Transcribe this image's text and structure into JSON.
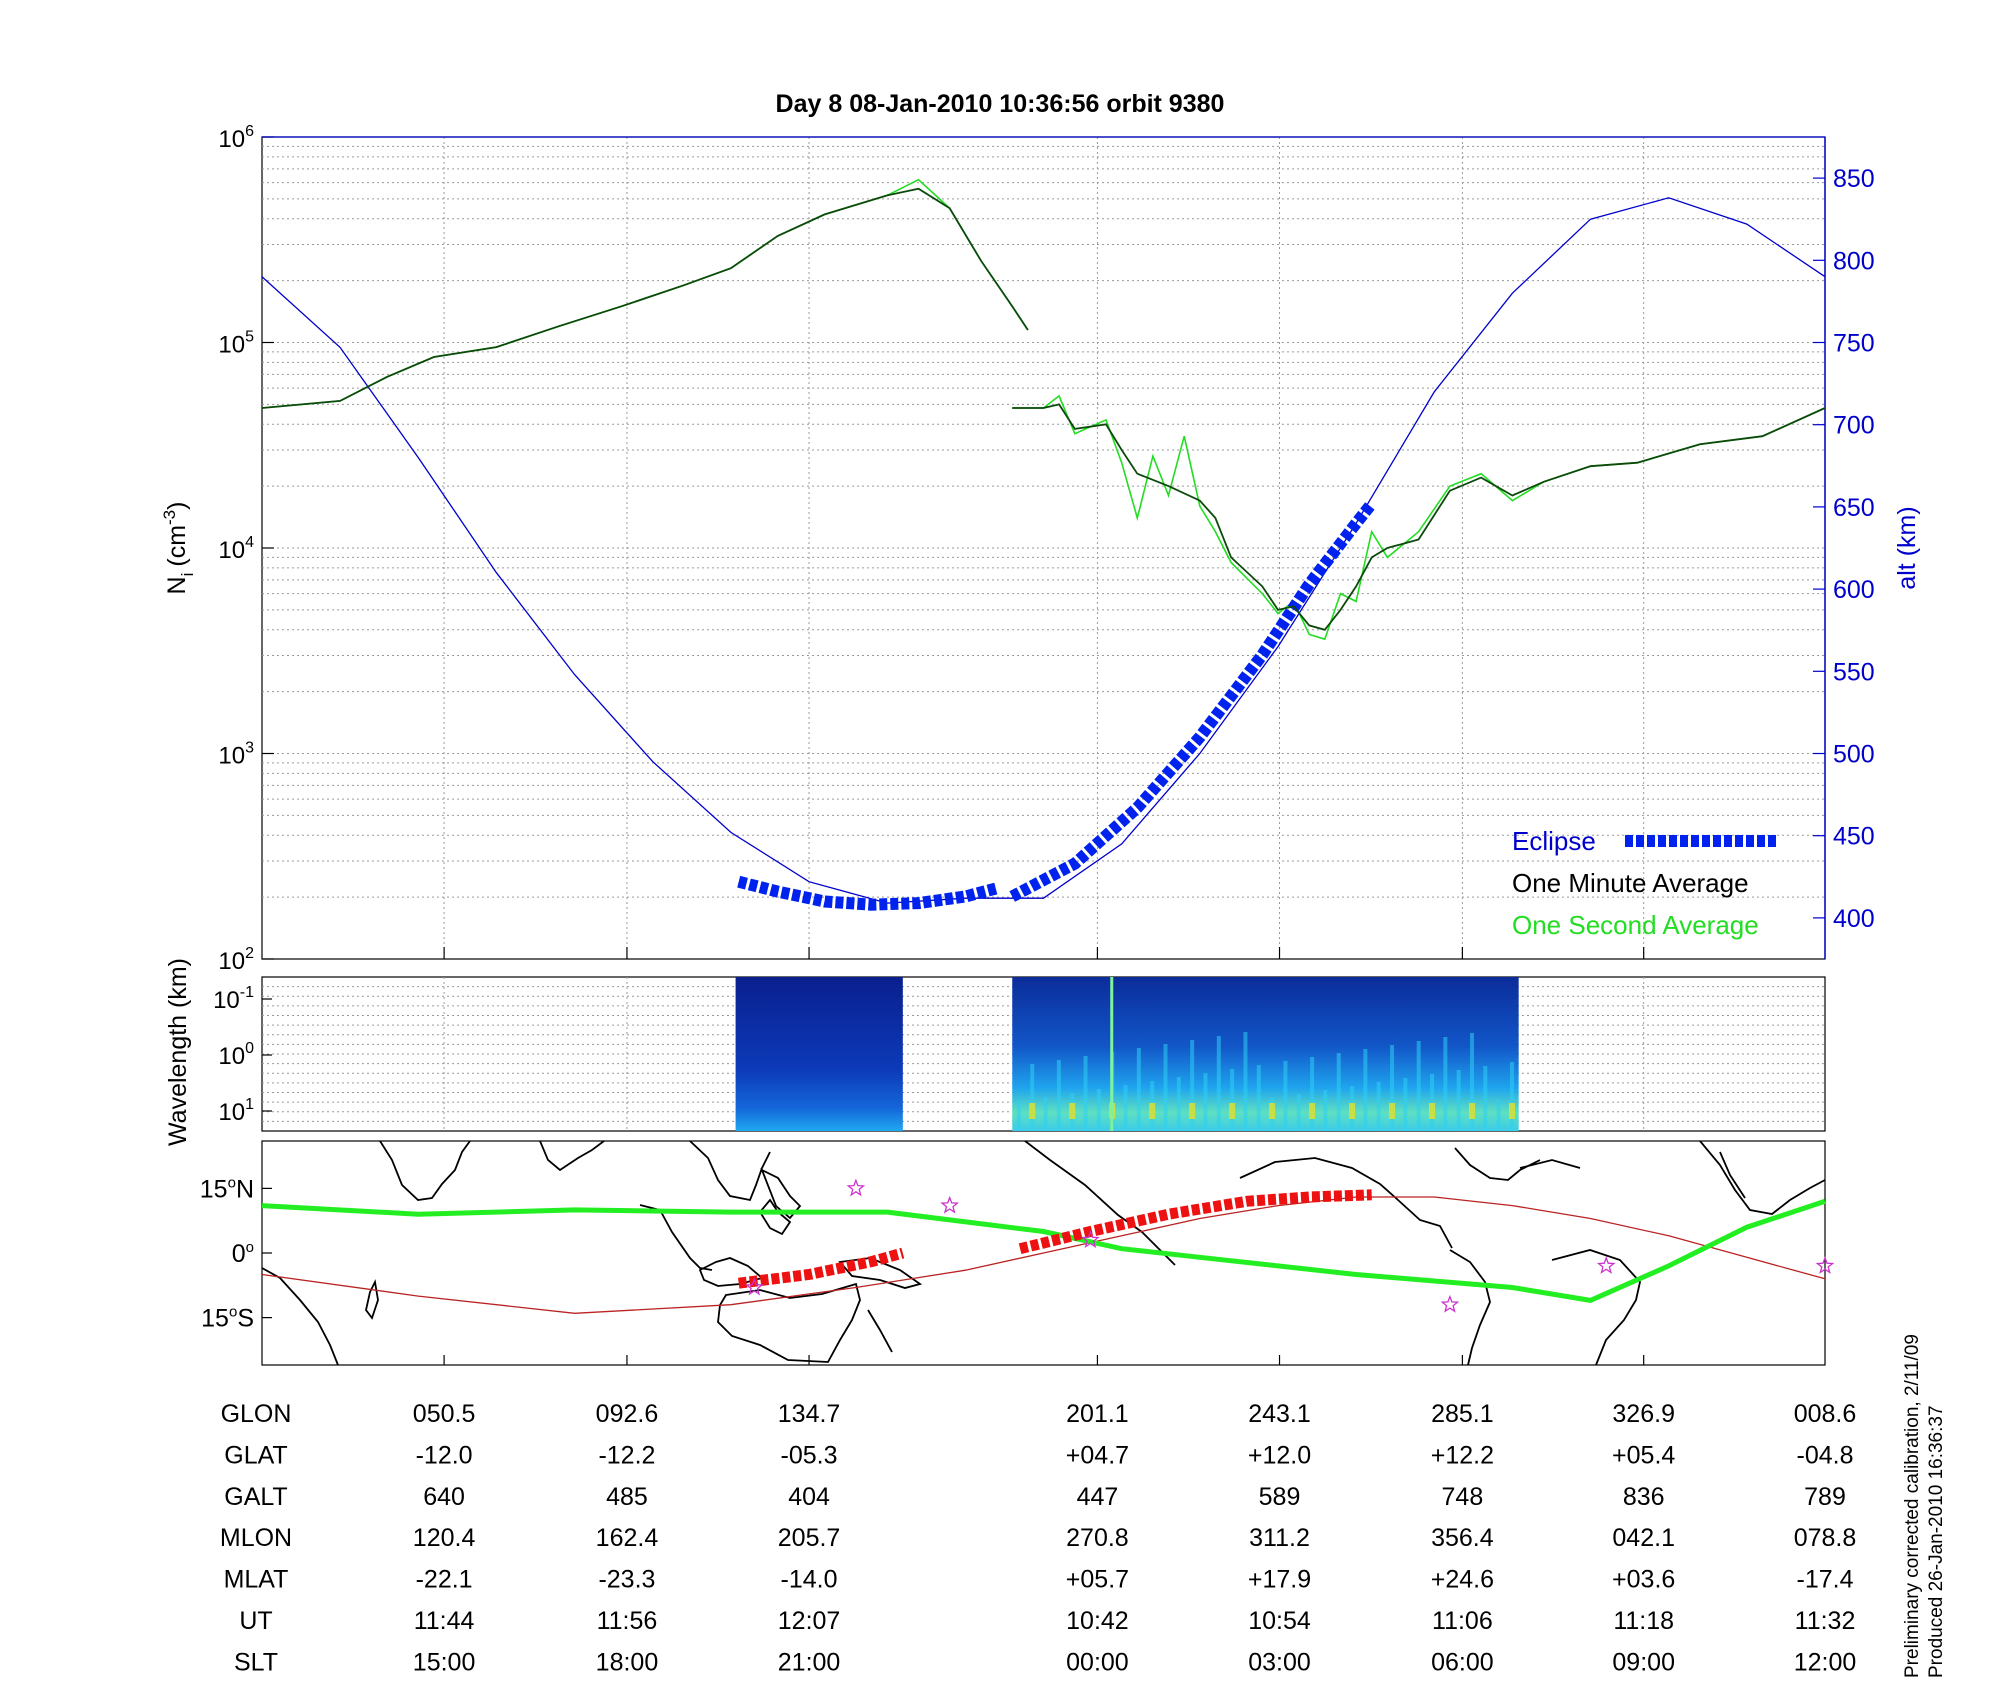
{
  "title": "Day 8  08-Jan-2010 10:36:56   orbit 9380",
  "footnote": {
    "line1": "Preliminary corrected calibration, 2/11/09",
    "line2": "Produced 26-Jan-2010 16:36:37"
  },
  "colors": {
    "altitude": "#0000cc",
    "eclipse": "#0022ee",
    "one_minute": "#0b4a0b",
    "one_second": "#22dd22",
    "track": "#22ee22",
    "eclipse_track": "#ee1111",
    "magnetic_equator": "#bb2222",
    "stars": "#cc33cc"
  },
  "chart_data": [
    {
      "type": "line",
      "panel": "density",
      "ylabel": "N",
      "ylabel_sub": "i",
      "ylabel_unit": "(cm",
      "ylabel_exp": "-3",
      "y_scale": "log",
      "ylim": [
        100,
        1000000
      ],
      "y_ticks": [
        {
          "base": "10",
          "exp": "2"
        },
        {
          "base": "10",
          "exp": "3"
        },
        {
          "base": "10",
          "exp": "4"
        },
        {
          "base": "10",
          "exp": "5"
        },
        {
          "base": "10",
          "exp": "6"
        }
      ],
      "y2label": "alt (km)",
      "y2lim": [
        375,
        875
      ],
      "y2_ticks": [
        "400",
        "450",
        "500",
        "550",
        "600",
        "650",
        "700",
        "750",
        "800",
        "850"
      ],
      "x_sample_fraction": [
        0,
        0.05,
        0.1,
        0.15,
        0.2,
        0.25,
        0.3,
        0.35,
        0.4,
        0.45,
        0.5,
        0.55,
        0.6,
        0.65,
        0.7,
        0.75,
        0.8,
        0.85,
        0.9,
        0.95,
        1.0
      ],
      "grid": true,
      "legend": "bottom-right",
      "legend_entries": [
        "Eclipse",
        "One Minute Average",
        "One Second Average"
      ],
      "series": [
        {
          "name": "One Minute Average",
          "role": "one_minute",
          "segments": [
            [
              [
                0.0,
                48000
              ],
              [
                0.05,
                52000
              ],
              [
                0.08,
                68000
              ],
              [
                0.11,
                85000
              ],
              [
                0.15,
                95000
              ],
              [
                0.19,
                120000
              ],
              [
                0.23,
                150000
              ],
              [
                0.27,
                190000
              ],
              [
                0.3,
                230000
              ],
              [
                0.33,
                330000
              ],
              [
                0.36,
                420000
              ],
              [
                0.4,
                520000
              ],
              [
                0.42,
                560000
              ],
              [
                0.44,
                450000
              ],
              [
                0.46,
                250000
              ],
              [
                0.48,
                150000
              ],
              [
                0.49,
                115000
              ]
            ],
            [
              [
                0.48,
                48000
              ],
              [
                0.5,
                48000
              ],
              [
                0.51,
                50000
              ],
              [
                0.52,
                38000
              ],
              [
                0.54,
                40000
              ],
              [
                0.55,
                30000
              ],
              [
                0.56,
                23000
              ],
              [
                0.58,
                20000
              ],
              [
                0.6,
                17000
              ],
              [
                0.61,
                14000
              ],
              [
                0.62,
                9000
              ],
              [
                0.64,
                6500
              ],
              [
                0.65,
                5000
              ],
              [
                0.66,
                5200
              ],
              [
                0.67,
                4200
              ],
              [
                0.68,
                4000
              ],
              [
                0.69,
                5000
              ],
              [
                0.7,
                6500
              ],
              [
                0.71,
                9000
              ],
              [
                0.72,
                10000
              ],
              [
                0.74,
                11000
              ],
              [
                0.76,
                19000
              ],
              [
                0.78,
                22000
              ],
              [
                0.8,
                18000
              ],
              [
                0.82,
                21000
              ],
              [
                0.85,
                25000
              ],
              [
                0.88,
                26000
              ],
              [
                0.92,
                32000
              ],
              [
                0.96,
                35000
              ],
              [
                1.0,
                48000
              ]
            ]
          ]
        },
        {
          "name": "One Second Average",
          "role": "one_second",
          "segments": [
            [
              [
                0.0,
                48000
              ],
              [
                0.05,
                52000
              ],
              [
                0.08,
                68000
              ],
              [
                0.11,
                85000
              ],
              [
                0.15,
                95000
              ],
              [
                0.19,
                120000
              ],
              [
                0.23,
                150000
              ],
              [
                0.27,
                190000
              ],
              [
                0.3,
                230000
              ],
              [
                0.33,
                330000
              ],
              [
                0.36,
                420000
              ],
              [
                0.4,
                520000
              ],
              [
                0.42,
                620000
              ],
              [
                0.44,
                450000
              ],
              [
                0.46,
                250000
              ],
              [
                0.48,
                150000
              ],
              [
                0.49,
                115000
              ]
            ],
            [
              [
                0.48,
                48000
              ],
              [
                0.5,
                48000
              ],
              [
                0.51,
                55000
              ],
              [
                0.52,
                36000
              ],
              [
                0.54,
                42000
              ],
              [
                0.55,
                26000
              ],
              [
                0.56,
                14000
              ],
              [
                0.57,
                28000
              ],
              [
                0.58,
                18000
              ],
              [
                0.59,
                35000
              ],
              [
                0.6,
                16000
              ],
              [
                0.61,
                12000
              ],
              [
                0.62,
                8500
              ],
              [
                0.64,
                6000
              ],
              [
                0.65,
                4800
              ],
              [
                0.66,
                5500
              ],
              [
                0.67,
                3800
              ],
              [
                0.68,
                3600
              ],
              [
                0.69,
                6000
              ],
              [
                0.7,
                5500
              ],
              [
                0.71,
                12000
              ],
              [
                0.72,
                9000
              ],
              [
                0.74,
                12000
              ],
              [
                0.76,
                20000
              ],
              [
                0.78,
                23000
              ],
              [
                0.8,
                17000
              ],
              [
                0.82,
                21000
              ],
              [
                0.85,
                25000
              ],
              [
                0.88,
                26000
              ],
              [
                0.92,
                32000
              ],
              [
                0.96,
                35000
              ],
              [
                1.0,
                48000
              ]
            ]
          ]
        },
        {
          "name": "alt (km)",
          "role": "altitude",
          "axis": "right",
          "points": [
            [
              0.0,
              790
            ],
            [
              0.05,
              747
            ],
            [
              0.1,
              680
            ],
            [
              0.15,
              610
            ],
            [
              0.2,
              548
            ],
            [
              0.25,
              495
            ],
            [
              0.3,
              452
            ],
            [
              0.35,
              422
            ],
            [
              0.4,
              409
            ],
            [
              0.45,
              412
            ],
            [
              0.5,
              412
            ],
            [
              0.55,
              445
            ],
            [
              0.6,
              500
            ],
            [
              0.65,
              565
            ],
            [
              0.7,
              640
            ],
            [
              0.75,
              720
            ],
            [
              0.8,
              780
            ],
            [
              0.85,
              825
            ],
            [
              0.9,
              838
            ],
            [
              0.95,
              822
            ],
            [
              1.0,
              790
            ]
          ]
        },
        {
          "name": "Eclipse",
          "role": "eclipse",
          "axis": "right",
          "segments": [
            [
              [
                0.305,
                422
              ],
              [
                0.33,
                416
              ],
              [
                0.36,
                410
              ],
              [
                0.39,
                408
              ],
              [
                0.42,
                409
              ],
              [
                0.45,
                413
              ],
              [
                0.47,
                418
              ]
            ],
            [
              [
                0.48,
                413
              ],
              [
                0.52,
                433
              ],
              [
                0.56,
                467
              ],
              [
                0.6,
                510
              ],
              [
                0.64,
                560
              ],
              [
                0.67,
                603
              ],
              [
                0.7,
                640
              ],
              [
                0.71,
                652
              ]
            ]
          ]
        }
      ]
    },
    {
      "type": "heatmap",
      "panel": "spectrogram",
      "ylabel": "Wavelength (km)",
      "y_ticks": [
        {
          "base": "10",
          "exp": "-1"
        },
        {
          "base": "10",
          "exp": "0"
        },
        {
          "base": "10",
          "exp": "1"
        }
      ],
      "blocks": [
        [
          0.303,
          0.41
        ],
        [
          0.48,
          0.804
        ]
      ]
    },
    {
      "type": "map",
      "panel": "ground-track",
      "y_ticks": [
        {
          "value": "15",
          "unit": "N"
        },
        {
          "value": "0",
          "unit": ""
        },
        {
          "value": "15",
          "unit": "S"
        }
      ],
      "track": [
        [
          0.0,
          11
        ],
        [
          0.1,
          9
        ],
        [
          0.2,
          10
        ],
        [
          0.3,
          9.5
        ],
        [
          0.4,
          9.5
        ],
        [
          0.5,
          5
        ],
        [
          0.55,
          1
        ],
        [
          0.6,
          -1
        ],
        [
          0.7,
          -5
        ],
        [
          0.8,
          -8
        ],
        [
          0.85,
          -11
        ],
        [
          0.9,
          -3
        ],
        [
          0.95,
          6
        ],
        [
          1.0,
          12
        ]
      ],
      "eclipse_track": [
        [
          [
            0.305,
            -7
          ],
          [
            0.35,
            -5
          ],
          [
            0.39,
            -2
          ],
          [
            0.41,
            0
          ]
        ],
        [
          [
            0.485,
            1
          ],
          [
            0.53,
            5
          ],
          [
            0.58,
            9
          ],
          [
            0.63,
            12
          ],
          [
            0.67,
            13
          ],
          [
            0.71,
            13.5
          ]
        ]
      ],
      "magnetic_equator": [
        [
          0.0,
          -5
        ],
        [
          0.1,
          -10
        ],
        [
          0.2,
          -14
        ],
        [
          0.3,
          -12
        ],
        [
          0.38,
          -8
        ],
        [
          0.45,
          -4
        ],
        [
          0.5,
          0
        ],
        [
          0.55,
          4
        ],
        [
          0.6,
          8
        ],
        [
          0.65,
          11
        ],
        [
          0.7,
          13
        ],
        [
          0.75,
          13
        ],
        [
          0.8,
          11
        ],
        [
          0.85,
          8
        ],
        [
          0.9,
          4
        ],
        [
          0.95,
          -1
        ],
        [
          1.0,
          -6
        ]
      ],
      "stars": [
        [
          0.315,
          -8
        ],
        [
          0.38,
          15
        ],
        [
          0.44,
          11
        ],
        [
          0.53,
          3
        ],
        [
          0.76,
          -12
        ],
        [
          0.86,
          -3
        ],
        [
          1.0,
          -3
        ]
      ]
    },
    {
      "type": "table",
      "panel": "ephemeris",
      "columns": [
        0.1165,
        0.2335,
        0.35,
        0.5345,
        0.651,
        0.768,
        0.884,
        1.0
      ],
      "rows": [
        {
          "label": "GLON",
          "values": [
            "050.5",
            "092.6",
            "134.7",
            "201.1",
            "243.1",
            "285.1",
            "326.9",
            "008.6"
          ]
        },
        {
          "label": "GLAT",
          "values": [
            "-12.0",
            "-12.2",
            "-05.3",
            "+04.7",
            "+12.0",
            "+12.2",
            "+05.4",
            "-04.8"
          ]
        },
        {
          "label": "GALT",
          "values": [
            "640",
            "485",
            "404",
            "447",
            "589",
            "748",
            "836",
            "789"
          ]
        },
        {
          "label": "MLON",
          "values": [
            "120.4",
            "162.4",
            "205.7",
            "270.8",
            "311.2",
            "356.4",
            "042.1",
            "078.8"
          ]
        },
        {
          "label": "MLAT",
          "values": [
            "-22.1",
            "-23.3",
            "-14.0",
            "+05.7",
            "+17.9",
            "+24.6",
            "+03.6",
            "-17.4"
          ]
        },
        {
          "label": "UT",
          "values": [
            "11:44",
            "11:56",
            "12:07",
            "10:42",
            "10:54",
            "11:06",
            "11:18",
            "11:32"
          ]
        },
        {
          "label": "SLT",
          "values": [
            "15:00",
            "18:00",
            "21:00",
            "00:00",
            "03:00",
            "06:00",
            "09:00",
            "12:00"
          ]
        }
      ]
    }
  ]
}
